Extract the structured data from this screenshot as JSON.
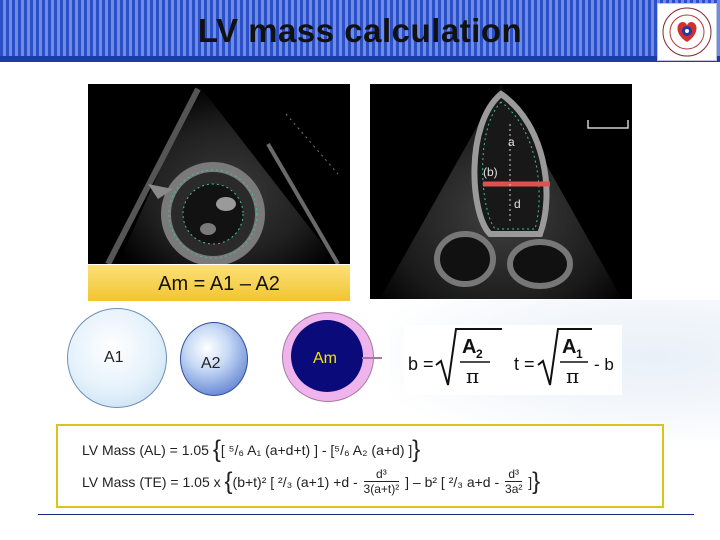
{
  "slide": {
    "title": "LV mass calculation",
    "area_formula": "Am = A1 – A2",
    "circles": {
      "a1": "A1",
      "a2": "A2",
      "am": "Am"
    },
    "echo_labels": {
      "a": "a",
      "b": "(b)",
      "d": "d"
    },
    "radius_formula": {
      "b_lhs": "b =",
      "b_num": "A",
      "b_num_sub": "2",
      "b_den": "π",
      "t_lhs": "t =",
      "t_num": "A",
      "t_num_sub": "1",
      "t_den": "π",
      "t_tail": "- b"
    },
    "mass_formula": {
      "al_label": "LV Mass (AL) = 1.05",
      "al_body": "[ ⁵/₆ A₁ (a+d+t) ] - [⁵/₆ A₂ (a+d) ]",
      "te_label": "LV Mass (TE) = 1.05 x",
      "te_p1": "(b+t)² [ ²/₃ (a+1) +d -",
      "te_f1_num": "d³",
      "te_f1_den": "3(a+t)²",
      "te_p2": "] – b² [ ²/₃ a+d -",
      "te_f2_num": "d³",
      "te_f2_den": "3a²",
      "te_p3": "]"
    }
  },
  "colors": {
    "header_blue": "#2b4fc6",
    "formula_bar_yellow": "#f2c530",
    "box_border": "#d8c51d",
    "am_ring": "#f0b4ec",
    "am_core": "#0a0a7a",
    "caliper_red": "#e05050"
  }
}
